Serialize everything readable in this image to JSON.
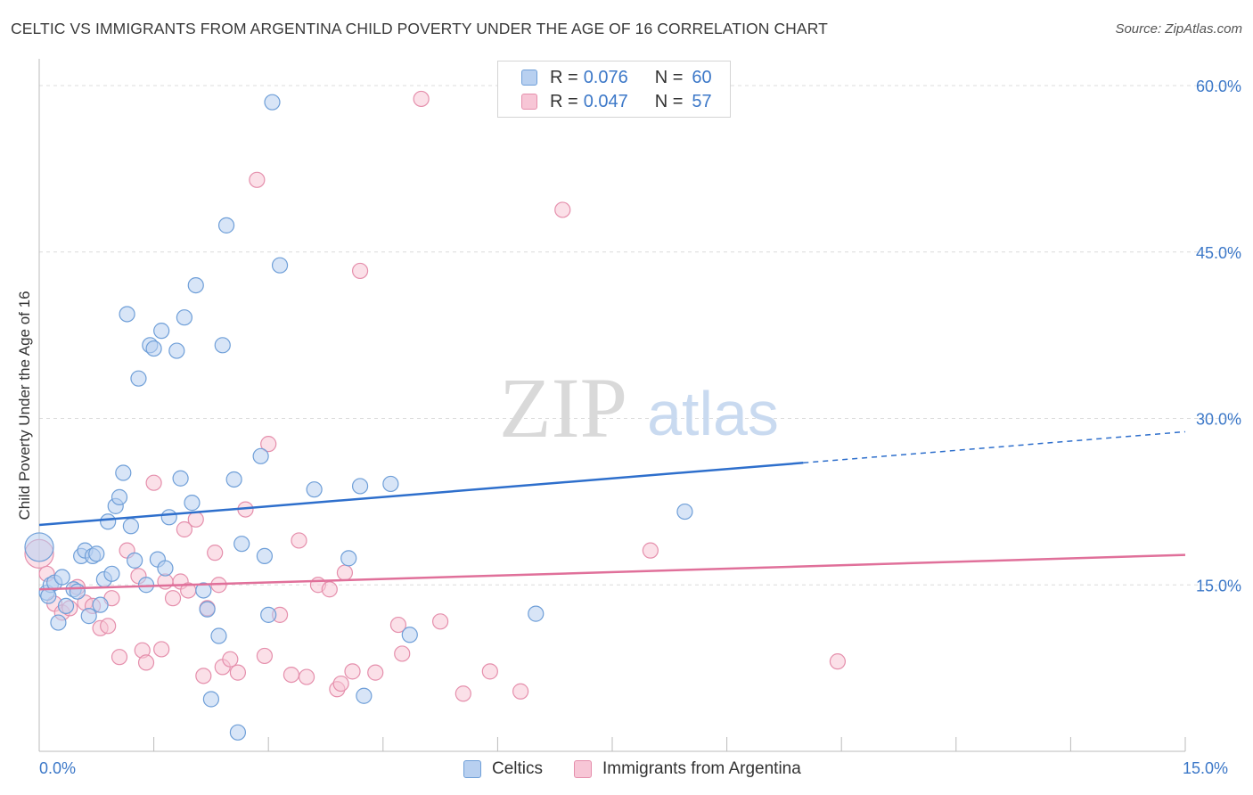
{
  "title": "CELTIC VS IMMIGRANTS FROM ARGENTINA CHILD POVERTY UNDER THE AGE OF 16 CORRELATION CHART",
  "source": "Source: ZipAtlas.com",
  "watermark": {
    "zip": "ZIP",
    "atlas": "atlas"
  },
  "legend": {
    "rows": [
      {
        "r_label": "R =",
        "r_value": "0.076",
        "n_label": "N =",
        "n_value": "60"
      },
      {
        "r_label": "R =",
        "r_value": "0.047",
        "n_label": "N =",
        "n_value": "57"
      }
    ]
  },
  "colors": {
    "celtics_fill": "#b8d0f0",
    "celtics_stroke": "#6f9fd8",
    "celtics_line": "#2e6fcc",
    "argentina_fill": "#f7c6d6",
    "argentina_stroke": "#e58fac",
    "argentina_line": "#e0709a",
    "tick_label": "#3c78c8",
    "grid": "#dcdcdc"
  },
  "chart_data": {
    "type": "scatter",
    "title": "CELTIC VS IMMIGRANTS FROM ARGENTINA CHILD POVERTY UNDER THE AGE OF 16 CORRELATION CHART",
    "xlabel": "",
    "ylabel": "Child Poverty Under the Age of 16",
    "xlim": [
      0,
      15
    ],
    "ylim": [
      0,
      60
    ],
    "x_tick_labels": [
      "0.0%",
      "15.0%"
    ],
    "y_ticks": [
      15,
      30,
      45,
      60
    ],
    "y_tick_labels": [
      "15.0%",
      "30.0%",
      "45.0%",
      "60.0%"
    ],
    "grid": true,
    "legend_position": "top-center",
    "series": [
      {
        "name": "Celtics",
        "R": 0.076,
        "N": 60,
        "trend": {
          "x0": 0,
          "y0": 20.4,
          "x1": 15,
          "y1": 28.8,
          "solid_until_x": 10.0
        },
        "points": [
          [
            0.0,
            18.4
          ],
          [
            0.1,
            14.3
          ],
          [
            0.15,
            15.0
          ],
          [
            0.2,
            15.2
          ],
          [
            0.25,
            11.6
          ],
          [
            0.3,
            15.7
          ],
          [
            0.35,
            13.1
          ],
          [
            0.45,
            14.6
          ],
          [
            0.5,
            14.4
          ],
          [
            0.55,
            17.6
          ],
          [
            0.6,
            18.1
          ],
          [
            0.65,
            12.2
          ],
          [
            0.7,
            17.6
          ],
          [
            0.75,
            17.8
          ],
          [
            0.8,
            13.2
          ],
          [
            0.85,
            15.5
          ],
          [
            0.9,
            20.7
          ],
          [
            0.95,
            16.0
          ],
          [
            1.0,
            22.1
          ],
          [
            1.05,
            22.9
          ],
          [
            1.1,
            25.1
          ],
          [
            1.15,
            39.4
          ],
          [
            1.2,
            20.3
          ],
          [
            1.25,
            17.2
          ],
          [
            1.3,
            33.6
          ],
          [
            1.4,
            15.0
          ],
          [
            1.45,
            36.6
          ],
          [
            1.5,
            36.3
          ],
          [
            1.55,
            17.3
          ],
          [
            1.6,
            37.9
          ],
          [
            1.65,
            16.5
          ],
          [
            1.7,
            21.1
          ],
          [
            1.8,
            36.1
          ],
          [
            1.85,
            24.6
          ],
          [
            1.9,
            39.1
          ],
          [
            2.0,
            22.4
          ],
          [
            2.05,
            42.0
          ],
          [
            2.15,
            14.5
          ],
          [
            2.2,
            12.8
          ],
          [
            2.25,
            4.7
          ],
          [
            2.35,
            10.4
          ],
          [
            2.4,
            36.6
          ],
          [
            2.45,
            47.4
          ],
          [
            2.55,
            24.5
          ],
          [
            2.6,
            1.7
          ],
          [
            2.65,
            18.7
          ],
          [
            2.9,
            26.6
          ],
          [
            2.95,
            17.6
          ],
          [
            3.0,
            12.3
          ],
          [
            3.05,
            58.5
          ],
          [
            3.15,
            43.8
          ],
          [
            3.6,
            23.6
          ],
          [
            4.05,
            17.4
          ],
          [
            4.2,
            23.9
          ],
          [
            4.25,
            5.0
          ],
          [
            4.6,
            24.1
          ],
          [
            4.85,
            10.5
          ],
          [
            6.5,
            12.4
          ],
          [
            8.45,
            21.6
          ],
          [
            0.12,
            14.0
          ]
        ]
      },
      {
        "name": "Immigrants from Argentina",
        "R": 0.047,
        "N": 57,
        "trend": {
          "x0": 0,
          "y0": 14.6,
          "x1": 15,
          "y1": 17.7,
          "solid_until_x": 15
        },
        "points": [
          [
            0.0,
            17.8
          ],
          [
            0.1,
            16.0
          ],
          [
            0.2,
            13.3
          ],
          [
            0.3,
            12.5
          ],
          [
            0.4,
            12.9
          ],
          [
            0.5,
            14.8
          ],
          [
            0.6,
            13.4
          ],
          [
            0.7,
            13.1
          ],
          [
            0.8,
            11.1
          ],
          [
            0.9,
            11.3
          ],
          [
            0.95,
            13.8
          ],
          [
            1.05,
            8.5
          ],
          [
            1.15,
            18.1
          ],
          [
            1.3,
            15.8
          ],
          [
            1.35,
            9.1
          ],
          [
            1.4,
            8.0
          ],
          [
            1.5,
            24.2
          ],
          [
            1.6,
            9.2
          ],
          [
            1.65,
            15.3
          ],
          [
            1.75,
            13.8
          ],
          [
            1.85,
            15.3
          ],
          [
            1.9,
            20.0
          ],
          [
            1.95,
            14.5
          ],
          [
            2.05,
            20.9
          ],
          [
            2.15,
            6.8
          ],
          [
            2.2,
            12.9
          ],
          [
            2.3,
            17.9
          ],
          [
            2.35,
            15.0
          ],
          [
            2.4,
            7.6
          ],
          [
            2.5,
            8.3
          ],
          [
            2.6,
            7.1
          ],
          [
            2.7,
            21.8
          ],
          [
            2.85,
            51.5
          ],
          [
            2.95,
            8.6
          ],
          [
            3.0,
            27.7
          ],
          [
            3.15,
            12.3
          ],
          [
            3.3,
            6.9
          ],
          [
            3.4,
            19.0
          ],
          [
            3.5,
            6.7
          ],
          [
            3.65,
            15.0
          ],
          [
            3.8,
            14.6
          ],
          [
            3.9,
            5.6
          ],
          [
            3.95,
            6.1
          ],
          [
            4.0,
            16.1
          ],
          [
            4.1,
            7.2
          ],
          [
            4.2,
            43.3
          ],
          [
            4.4,
            7.1
          ],
          [
            4.7,
            11.4
          ],
          [
            4.75,
            8.8
          ],
          [
            5.0,
            58.8
          ],
          [
            5.25,
            11.7
          ],
          [
            5.55,
            5.2
          ],
          [
            5.9,
            7.2
          ],
          [
            6.3,
            5.4
          ],
          [
            6.85,
            48.8
          ],
          [
            8.0,
            18.1
          ],
          [
            10.45,
            8.1
          ]
        ]
      }
    ]
  },
  "bottom_legend": [
    {
      "label": "Celtics"
    },
    {
      "label": "Immigrants from Argentina"
    }
  ]
}
